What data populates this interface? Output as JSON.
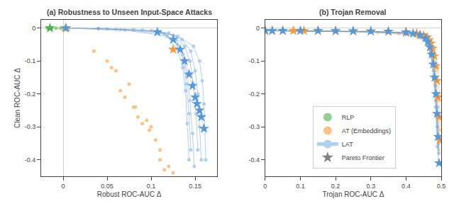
{
  "chart_data": [
    {
      "type": "scatter",
      "title": "(a) Robustness to Unseen Input-Space Attacks",
      "xlabel": "Robust ROC-AUC Δ",
      "ylabel": "Clean ROC-AUC Δ",
      "xlim": [
        -0.025,
        0.175
      ],
      "ylim": [
        -0.45,
        0.025
      ],
      "xticks": [
        0,
        0.05,
        0.1,
        0.15
      ],
      "yticks": [
        -0.4,
        -0.3,
        -0.2,
        -0.1,
        0
      ],
      "grid": false,
      "series": [
        {
          "name": "RLP",
          "color": "#4daf4a",
          "marker": "circle",
          "x": [
            -0.018,
            -0.013,
            -0.008,
            -0.003,
            0.001,
            0.004
          ],
          "values": [
            0.0,
            0.0,
            0.0,
            0.0,
            0.0,
            0.0
          ]
        },
        {
          "name": "AT (Embeddings)",
          "color": "#ff9933",
          "marker": "circle",
          "x": [
            0.0,
            0.003,
            0.004,
            0.005,
            0.006,
            0.035,
            0.06,
            0.075,
            0.082,
            0.09,
            0.098,
            0.05,
            0.065,
            0.08,
            0.095,
            0.105,
            0.11,
            0.115,
            0.055,
            0.07,
            0.085,
            0.1,
            0.11,
            0.12,
            0.125
          ],
          "values": [
            -0.005,
            -0.005,
            -0.005,
            -0.005,
            -0.005,
            -0.07,
            -0.13,
            -0.17,
            -0.24,
            -0.29,
            -0.31,
            -0.1,
            -0.19,
            -0.24,
            -0.28,
            -0.34,
            -0.4,
            -0.43,
            -0.12,
            -0.21,
            -0.27,
            -0.3,
            -0.37,
            -0.42,
            -0.44
          ]
        },
        {
          "name": "LAT",
          "color": "#5599dd",
          "marker": "circle",
          "line_style": "solid",
          "x": [
            0.003,
            0.04,
            0.08,
            0.11,
            0.13,
            0.148,
            0.155,
            0.158,
            0.16,
            0.161,
            0.162
          ],
          "values": [
            0.0,
            -0.002,
            -0.005,
            -0.012,
            -0.025,
            -0.055,
            -0.1,
            -0.16,
            -0.23,
            -0.31,
            -0.4
          ]
        },
        {
          "name": "LAT",
          "color": "#5599dd",
          "marker": "circle",
          "line_style": "solid",
          "x": [
            0.003,
            0.04,
            0.09,
            0.12,
            0.135,
            0.145,
            0.15,
            0.153,
            0.155,
            0.157
          ],
          "values": [
            0.0,
            -0.002,
            -0.006,
            -0.015,
            -0.035,
            -0.07,
            -0.13,
            -0.2,
            -0.3,
            -0.4
          ]
        },
        {
          "name": "LAT",
          "color": "#5599dd",
          "marker": "circle",
          "line_style": "solid",
          "x": [
            0.003,
            0.05,
            0.1,
            0.125,
            0.138,
            0.144,
            0.148,
            0.151,
            0.153
          ],
          "values": [
            0.0,
            -0.003,
            -0.008,
            -0.022,
            -0.055,
            -0.1,
            -0.17,
            -0.26,
            -0.37
          ]
        },
        {
          "name": "LAT",
          "color": "#5599dd",
          "marker": "circle",
          "line_style": "solid",
          "x": [
            0.003,
            0.06,
            0.11,
            0.128,
            0.136,
            0.141,
            0.144,
            0.147,
            0.149
          ],
          "values": [
            0.0,
            -0.004,
            -0.012,
            -0.038,
            -0.08,
            -0.14,
            -0.22,
            -0.32,
            -0.42
          ]
        },
        {
          "name": "LAT",
          "color": "#5599dd",
          "marker": "circle",
          "line_style": "solid",
          "x": [
            0.003,
            0.065,
            0.115,
            0.13,
            0.137,
            0.14,
            0.143,
            0.145
          ],
          "values": [
            0.0,
            -0.005,
            -0.018,
            -0.05,
            -0.1,
            -0.17,
            -0.26,
            -0.37
          ]
        },
        {
          "name": "LAT",
          "color": "#5599dd",
          "marker": "circle",
          "line_style": "solid",
          "x": [
            0.003,
            0.07,
            0.118,
            0.13,
            0.136,
            0.139,
            0.141,
            0.143
          ],
          "values": [
            0.0,
            -0.006,
            -0.025,
            -0.065,
            -0.12,
            -0.19,
            -0.29,
            -0.4
          ]
        },
        {
          "color": "#d3d3d3",
          "marker": "none",
          "line_style": "solid",
          "x": [
            0.003,
            0.107,
            0.125,
            0.133,
            0.138,
            0.143,
            0.147,
            0.15,
            0.152,
            0.155,
            0.157,
            0.16
          ],
          "values": [
            0.0,
            -0.012,
            -0.035,
            -0.065,
            -0.1,
            -0.14,
            -0.175,
            -0.21,
            -0.23,
            -0.25,
            -0.27,
            -0.305
          ]
        },
        {
          "color": "#4daf4a",
          "marker": "star",
          "x": [
            -0.015
          ],
          "values": [
            0.0
          ]
        },
        {
          "color": "#ff9933",
          "marker": "star",
          "x": [
            0.003,
            0.125
          ],
          "values": [
            0.0,
            -0.065
          ]
        },
        {
          "color": "#5599dd",
          "marker": "star",
          "x": [
            0.003,
            0.107,
            0.125,
            0.133,
            0.138,
            0.143,
            0.147,
            0.15,
            0.152,
            0.155,
            0.157,
            0.16
          ],
          "values": [
            0.0,
            -0.012,
            -0.035,
            -0.065,
            -0.1,
            -0.14,
            -0.175,
            -0.21,
            -0.23,
            -0.25,
            -0.27,
            -0.305
          ]
        }
      ]
    },
    {
      "type": "scatter",
      "title": "(b) Trojan Removal",
      "xlabel": "Trojan ROC-AUC Δ",
      "xlim": [
        0.0,
        0.5
      ],
      "ylim": [
        -0.45,
        0.025
      ],
      "xticks": [
        0,
        0.1,
        0.2,
        0.3,
        0.4,
        0.5
      ],
      "yticks": [
        -0.4,
        -0.3,
        -0.2,
        -0.1,
        0
      ],
      "grid": false,
      "legend": "lower left",
      "series": [
        {
          "name": "AT (Embeddings)",
          "color": "#ff9933",
          "marker": "circle",
          "line_style": "solid",
          "x": [
            0.0,
            0.05,
            0.1,
            0.15,
            0.2,
            0.25,
            0.3,
            0.35,
            0.4,
            0.43,
            0.45,
            0.47,
            0.48,
            0.49,
            0.495,
            0.498
          ],
          "values": [
            -0.008,
            -0.009,
            -0.009,
            -0.009,
            -0.009,
            -0.009,
            -0.01,
            -0.011,
            -0.014,
            -0.018,
            -0.025,
            -0.04,
            -0.065,
            -0.12,
            -0.2,
            -0.31
          ]
        },
        {
          "name": "AT (Embeddings)",
          "color": "#ff9933",
          "marker": "circle",
          "line_style": "solid",
          "x": [
            0.0,
            0.1,
            0.2,
            0.3,
            0.38,
            0.43,
            0.46,
            0.475,
            0.485,
            0.491,
            0.495
          ],
          "values": [
            -0.008,
            -0.009,
            -0.01,
            -0.012,
            -0.016,
            -0.023,
            -0.038,
            -0.07,
            -0.13,
            -0.22,
            -0.33
          ]
        },
        {
          "name": "AT (Embeddings)",
          "color": "#ff9933",
          "marker": "circle",
          "line_style": "solid",
          "x": [
            0.0,
            0.1,
            0.2,
            0.32,
            0.4,
            0.44,
            0.462,
            0.475,
            0.483,
            0.489,
            0.493
          ],
          "values": [
            -0.008,
            -0.009,
            -0.01,
            -0.014,
            -0.02,
            -0.03,
            -0.05,
            -0.09,
            -0.16,
            -0.26,
            -0.37
          ]
        },
        {
          "name": "LAT",
          "color": "#5599dd",
          "marker": "circle",
          "line_style": "solid",
          "x": [
            0.0,
            0.1,
            0.2,
            0.3,
            0.4,
            0.44,
            0.46,
            0.47,
            0.478,
            0.484,
            0.489,
            0.493
          ],
          "values": [
            -0.008,
            -0.0085,
            -0.009,
            -0.01,
            -0.013,
            -0.018,
            -0.028,
            -0.048,
            -0.085,
            -0.15,
            -0.24,
            -0.35
          ]
        },
        {
          "name": "LAT",
          "color": "#5599dd",
          "marker": "circle",
          "line_style": "solid",
          "x": [
            0.0,
            0.1,
            0.2,
            0.3,
            0.4,
            0.44,
            0.46,
            0.47,
            0.478,
            0.484,
            0.489,
            0.493
          ],
          "values": [
            -0.008,
            -0.0085,
            -0.009,
            -0.0105,
            -0.014,
            -0.02,
            -0.033,
            -0.056,
            -0.1,
            -0.175,
            -0.27,
            -0.38
          ]
        },
        {
          "name": "LAT",
          "color": "#5599dd",
          "marker": "circle",
          "line_style": "solid",
          "x": [
            0.0,
            0.1,
            0.2,
            0.3,
            0.4,
            0.44,
            0.46,
            0.47,
            0.478,
            0.484,
            0.489,
            0.492
          ],
          "values": [
            -0.008,
            -0.0085,
            -0.0095,
            -0.011,
            -0.015,
            -0.022,
            -0.037,
            -0.065,
            -0.115,
            -0.2,
            -0.3,
            -0.41
          ]
        },
        {
          "name": "LAT",
          "color": "#5599dd",
          "marker": "circle",
          "line_style": "solid",
          "x": [
            0.0,
            0.1,
            0.2,
            0.3,
            0.4,
            0.44,
            0.46,
            0.47,
            0.478,
            0.484,
            0.489
          ],
          "values": [
            -0.008,
            -0.009,
            -0.0095,
            -0.0115,
            -0.016,
            -0.025,
            -0.042,
            -0.073,
            -0.13,
            -0.22,
            -0.33
          ]
        },
        {
          "name": "LAT",
          "color": "#5599dd",
          "marker": "circle",
          "line_style": "solid",
          "x": [
            0.0,
            0.1,
            0.2,
            0.3,
            0.4,
            0.44,
            0.46,
            0.47,
            0.478,
            0.484,
            0.489
          ],
          "values": [
            -0.008,
            -0.009,
            -0.01,
            -0.012,
            -0.017,
            -0.027,
            -0.047,
            -0.082,
            -0.145,
            -0.24,
            -0.36
          ]
        },
        {
          "color": "#ff9933",
          "marker": "star",
          "x": [
            0.0,
            0.02,
            0.05,
            0.08,
            0.11,
            0.15,
            0.2,
            0.25,
            0.3,
            0.35,
            0.4,
            0.43,
            0.45,
            0.46,
            0.465,
            0.47,
            0.475,
            0.48,
            0.484,
            0.488,
            0.491,
            0.494,
            0.496
          ],
          "values": [
            -0.008,
            -0.008,
            -0.008,
            -0.008,
            -0.008,
            -0.008,
            -0.009,
            -0.009,
            -0.0095,
            -0.01,
            -0.012,
            -0.016,
            -0.022,
            -0.028,
            -0.036,
            -0.047,
            -0.062,
            -0.085,
            -0.115,
            -0.16,
            -0.21,
            -0.27,
            -0.34
          ]
        },
        {
          "color": "#5599dd",
          "marker": "star",
          "x": [
            0.0,
            0.02,
            0.05,
            0.1,
            0.15,
            0.2,
            0.25,
            0.3,
            0.35,
            0.4,
            0.42,
            0.44,
            0.455,
            0.462,
            0.468,
            0.473,
            0.477,
            0.481,
            0.485,
            0.488,
            0.491,
            0.494
          ],
          "values": [
            -0.008,
            -0.008,
            -0.008,
            -0.008,
            -0.008,
            -0.0085,
            -0.009,
            -0.0095,
            -0.01,
            -0.013,
            -0.016,
            -0.021,
            -0.03,
            -0.042,
            -0.058,
            -0.08,
            -0.11,
            -0.15,
            -0.2,
            -0.26,
            -0.33,
            -0.41
          ]
        },
        {
          "name": "Pareto Frontier",
          "color": "#808080",
          "marker": "star",
          "x": [],
          "values": []
        }
      ]
    }
  ]
}
